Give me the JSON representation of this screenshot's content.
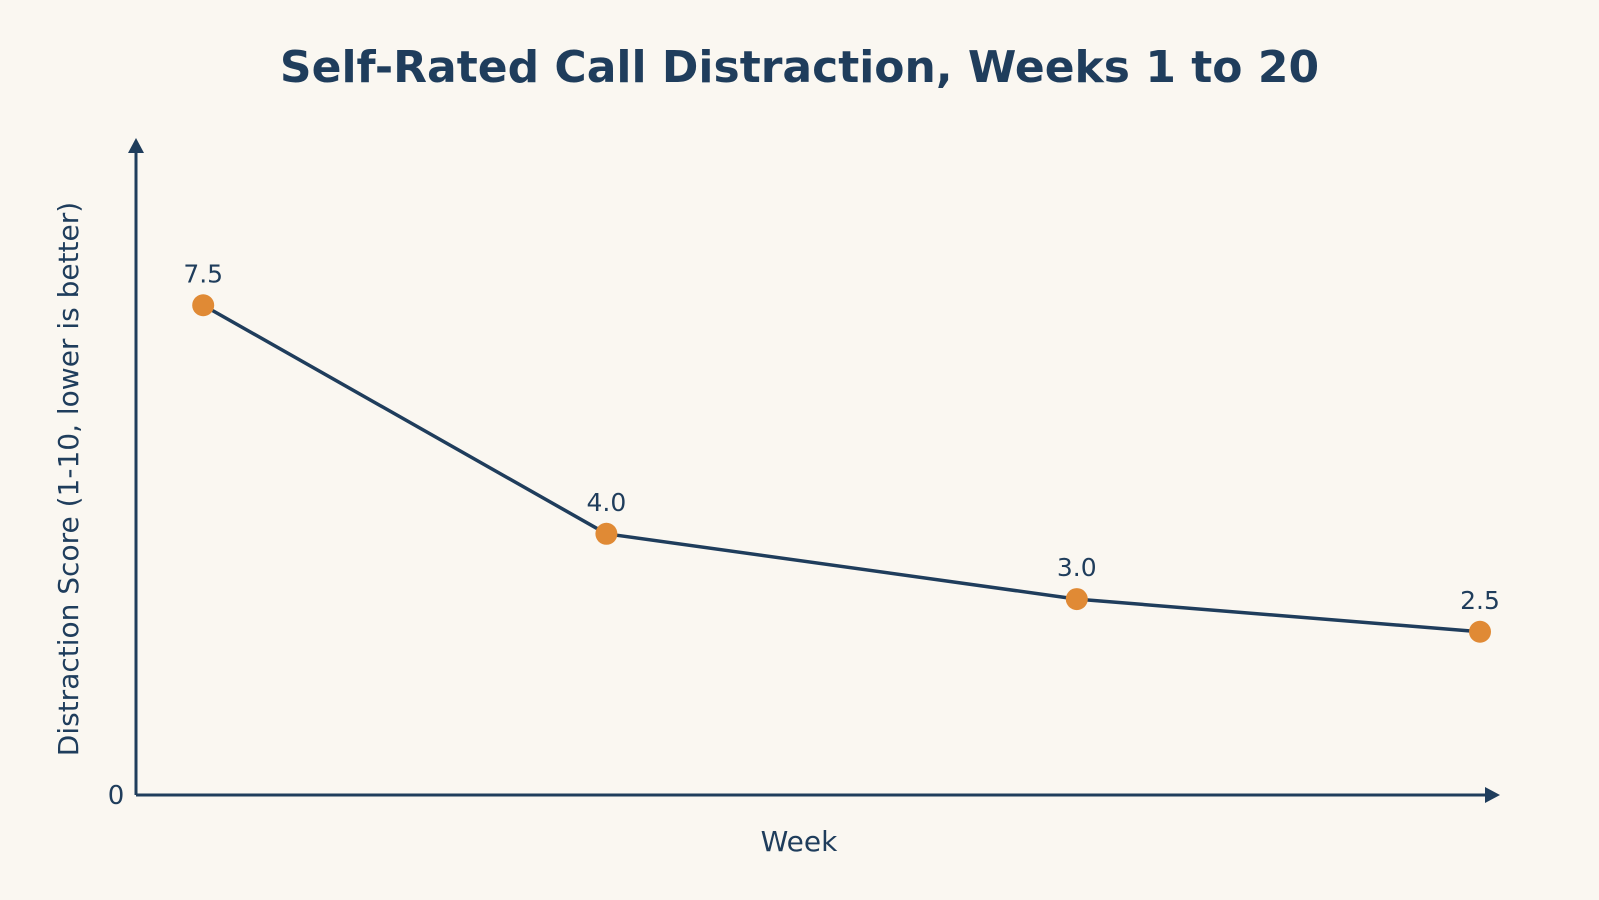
{
  "chart_data": {
    "type": "line",
    "title": "Self-Rated Call Distraction, Weeks 1 to 20",
    "xlabel": "Week",
    "ylabel": "Distraction Score (1-10, lower is better)",
    "y_tick_labels": [
      "0"
    ],
    "ylim": [
      0,
      10
    ],
    "xlim": [
      0,
      20
    ],
    "grid": false,
    "legend": "none",
    "series": [
      {
        "x": [
          1,
          7,
          14,
          20
        ],
        "values": [
          7.5,
          4.0,
          3.0,
          2.5
        ],
        "labels": [
          "7.5",
          "4.0",
          "3.0",
          "2.5"
        ]
      }
    ]
  },
  "colors": {
    "background": "#faf7f1",
    "text": "#1f3d5c",
    "axis": "#1f3d5c",
    "line": "#1f3d5c",
    "marker": "#e08a35"
  }
}
